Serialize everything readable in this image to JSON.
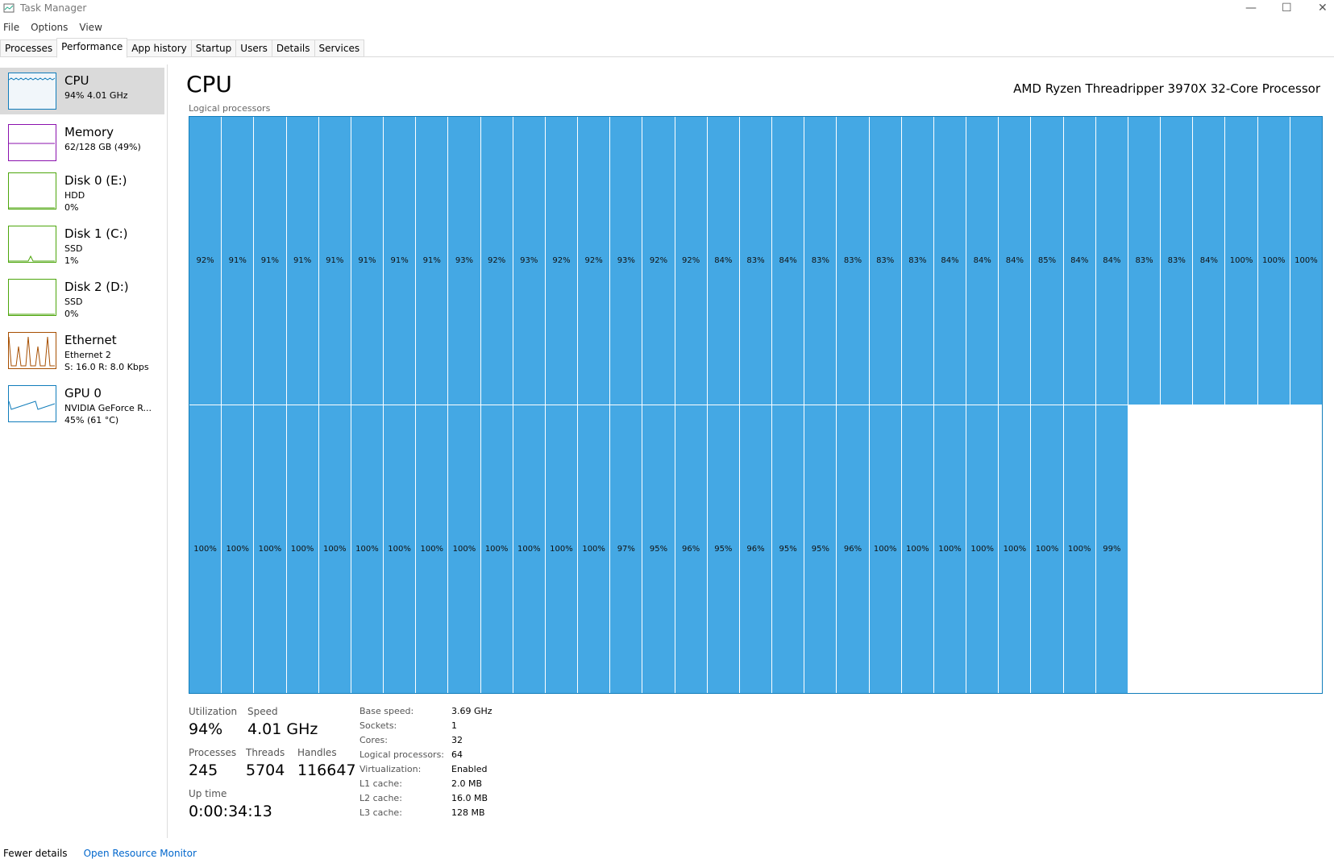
{
  "window": {
    "title": "Task Manager"
  },
  "menu": [
    "File",
    "Options",
    "View"
  ],
  "tabs": [
    "Processes",
    "Performance",
    "App history",
    "Startup",
    "Users",
    "Details",
    "Services"
  ],
  "sidebar": [
    {
      "name": "CPU",
      "lines": [
        "94% 4.01 GHz"
      ]
    },
    {
      "name": "Memory",
      "lines": [
        "62/128 GB (49%)"
      ]
    },
    {
      "name": "Disk 0 (E:)",
      "lines": [
        "HDD",
        "0%"
      ]
    },
    {
      "name": "Disk 1 (C:)",
      "lines": [
        "SSD",
        "1%"
      ]
    },
    {
      "name": "Disk 2 (D:)",
      "lines": [
        "SSD",
        "0%"
      ]
    },
    {
      "name": "Ethernet",
      "lines": [
        "Ethernet 2",
        "S: 16.0 R: 8.0 Kbps"
      ]
    },
    {
      "name": "GPU 0",
      "lines": [
        "NVIDIA GeForce R...",
        "45% (61 °C)"
      ]
    }
  ],
  "main": {
    "title": "CPU",
    "processor": "AMD Ryzen Threadripper 3970X 32-Core Processor",
    "grid_label": "Logical processors",
    "logical_processors": [
      "92%",
      "91%",
      "91%",
      "91%",
      "91%",
      "91%",
      "91%",
      "91%",
      "93%",
      "92%",
      "93%",
      "92%",
      "92%",
      "93%",
      "92%",
      "92%",
      "84%",
      "83%",
      "84%",
      "83%",
      "83%",
      "83%",
      "83%",
      "84%",
      "84%",
      "84%",
      "85%",
      "84%",
      "84%",
      "83%",
      "83%",
      "84%",
      "100%",
      "100%",
      "100%",
      "100%",
      "100%",
      "100%",
      "100%",
      "100%",
      "100%",
      "100%",
      "100%",
      "100%",
      "100%",
      "100%",
      "100%",
      "100%",
      "97%",
      "95%",
      "96%",
      "95%",
      "96%",
      "95%",
      "95%",
      "96%",
      "100%",
      "100%",
      "100%",
      "100%",
      "100%",
      "100%",
      "100%",
      "99%"
    ],
    "stats": [
      {
        "label": "Utilization",
        "value": "94%"
      },
      {
        "label": "Speed",
        "value": "4.01 GHz"
      },
      {
        "label": "Processes",
        "value": "245"
      },
      {
        "label": "Threads",
        "value": "5704"
      },
      {
        "label": "Handles",
        "value": "116647"
      },
      {
        "label": "Up time",
        "value": "0:00:34:13"
      }
    ],
    "details": [
      [
        "Base speed:",
        "3.69 GHz"
      ],
      [
        "Sockets:",
        "1"
      ],
      [
        "Cores:",
        "32"
      ],
      [
        "Logical processors:",
        "64"
      ],
      [
        "Virtualization:",
        "Enabled"
      ],
      [
        "L1 cache:",
        "2.0 MB"
      ],
      [
        "L2 cache:",
        "16.0 MB"
      ],
      [
        "L3 cache:",
        "128 MB"
      ]
    ]
  },
  "footer": {
    "fewer": "Fewer details",
    "monitor": "Open Resource Monitor"
  }
}
